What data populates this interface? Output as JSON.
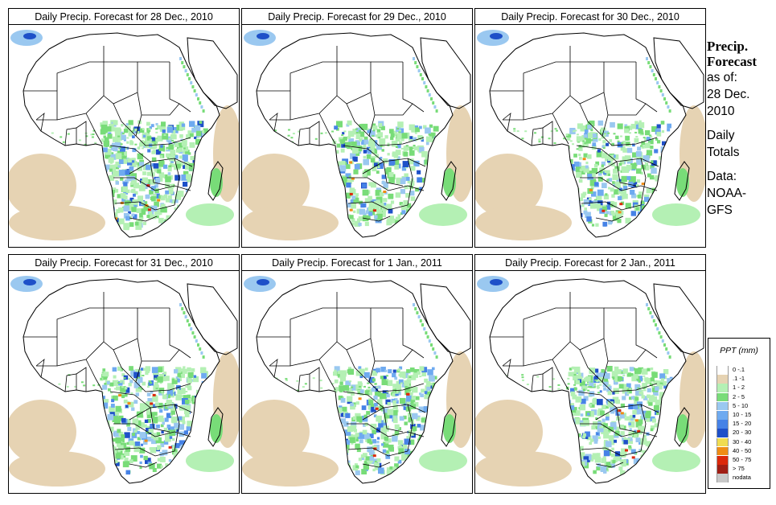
{
  "panels": [
    {
      "title": "Daily Precip. Forecast for  28 Dec., 2010",
      "wet": 1.0
    },
    {
      "title": "Daily Precip. Forecast for  29 Dec., 2010",
      "wet": 0.8
    },
    {
      "title": "Daily Precip. Forecast for  30 Dec., 2010",
      "wet": 0.75
    },
    {
      "title": "Daily Precip. Forecast for  31 Dec., 2010",
      "wet": 0.85
    },
    {
      "title": "Daily Precip. Forecast for  1 Jan., 2011",
      "wet": 0.9
    },
    {
      "title": "Daily Precip. Forecast for  2 Jan., 2011",
      "wet": 0.95
    }
  ],
  "side": {
    "heading1": "Precip.",
    "heading2": "Forecast",
    "asof1": "as of:",
    "asof2": "28 Dec.",
    "asof3": "2010",
    "totals1": "Daily",
    "totals2": "Totals",
    "data1": "Data:",
    "data2": "NOAA-",
    "data3": "GFS"
  },
  "legend": {
    "title": "PPT (mm)",
    "items": [
      {
        "label": "0 -.1",
        "color": "#ffffff"
      },
      {
        "label": ".1 -1",
        "color": "#e6d3b3"
      },
      {
        "label": "1 - 2",
        "color": "#b4f0b4"
      },
      {
        "label": "2 - 5",
        "color": "#78dc78"
      },
      {
        "label": "5 - 10",
        "color": "#9ac8f0"
      },
      {
        "label": "10 - 15",
        "color": "#6eaaf0"
      },
      {
        "label": "15 - 20",
        "color": "#4682e6"
      },
      {
        "label": "20 - 30",
        "color": "#1e50c8"
      },
      {
        "label": "30 - 40",
        "color": "#f0dc50"
      },
      {
        "label": "40 - 50",
        "color": "#f08c14"
      },
      {
        "label": "50 - 75",
        "color": "#dc280a"
      },
      {
        "label": "> 75",
        "color": "#a01e14"
      },
      {
        "label": "nodata",
        "color": "#c8c8c8"
      }
    ]
  }
}
